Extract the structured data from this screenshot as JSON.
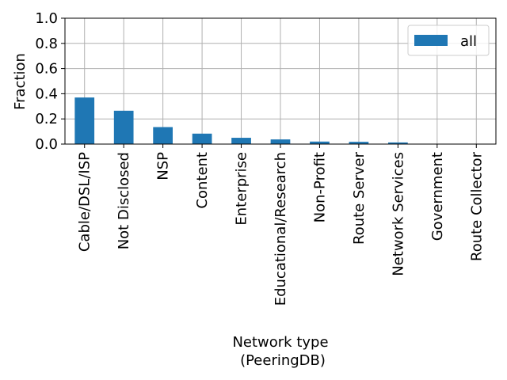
{
  "chart_data": {
    "type": "bar",
    "categories": [
      "Cable/DSL/ISP",
      "Not Disclosed",
      "NSP",
      "Content",
      "Enterprise",
      "Educational/Research",
      "Non-Profit",
      "Route Server",
      "Network Services",
      "Government",
      "Route Collector"
    ],
    "series": [
      {
        "name": "all",
        "values": [
          0.37,
          0.265,
          0.135,
          0.083,
          0.05,
          0.037,
          0.02,
          0.018,
          0.013,
          0.002,
          0.001
        ]
      }
    ],
    "xlabel_line1": "Network type",
    "xlabel_line2": "(PeeringDB)",
    "ylabel": "Fraction",
    "ylim": [
      0,
      1.0
    ],
    "yticks": [
      "0.0",
      "0.2",
      "0.4",
      "0.6",
      "0.8",
      "1.0"
    ],
    "grid": true,
    "legend": "top-right",
    "colors": {
      "bar": "#1f77b4",
      "grid": "#b0b0b0"
    }
  }
}
